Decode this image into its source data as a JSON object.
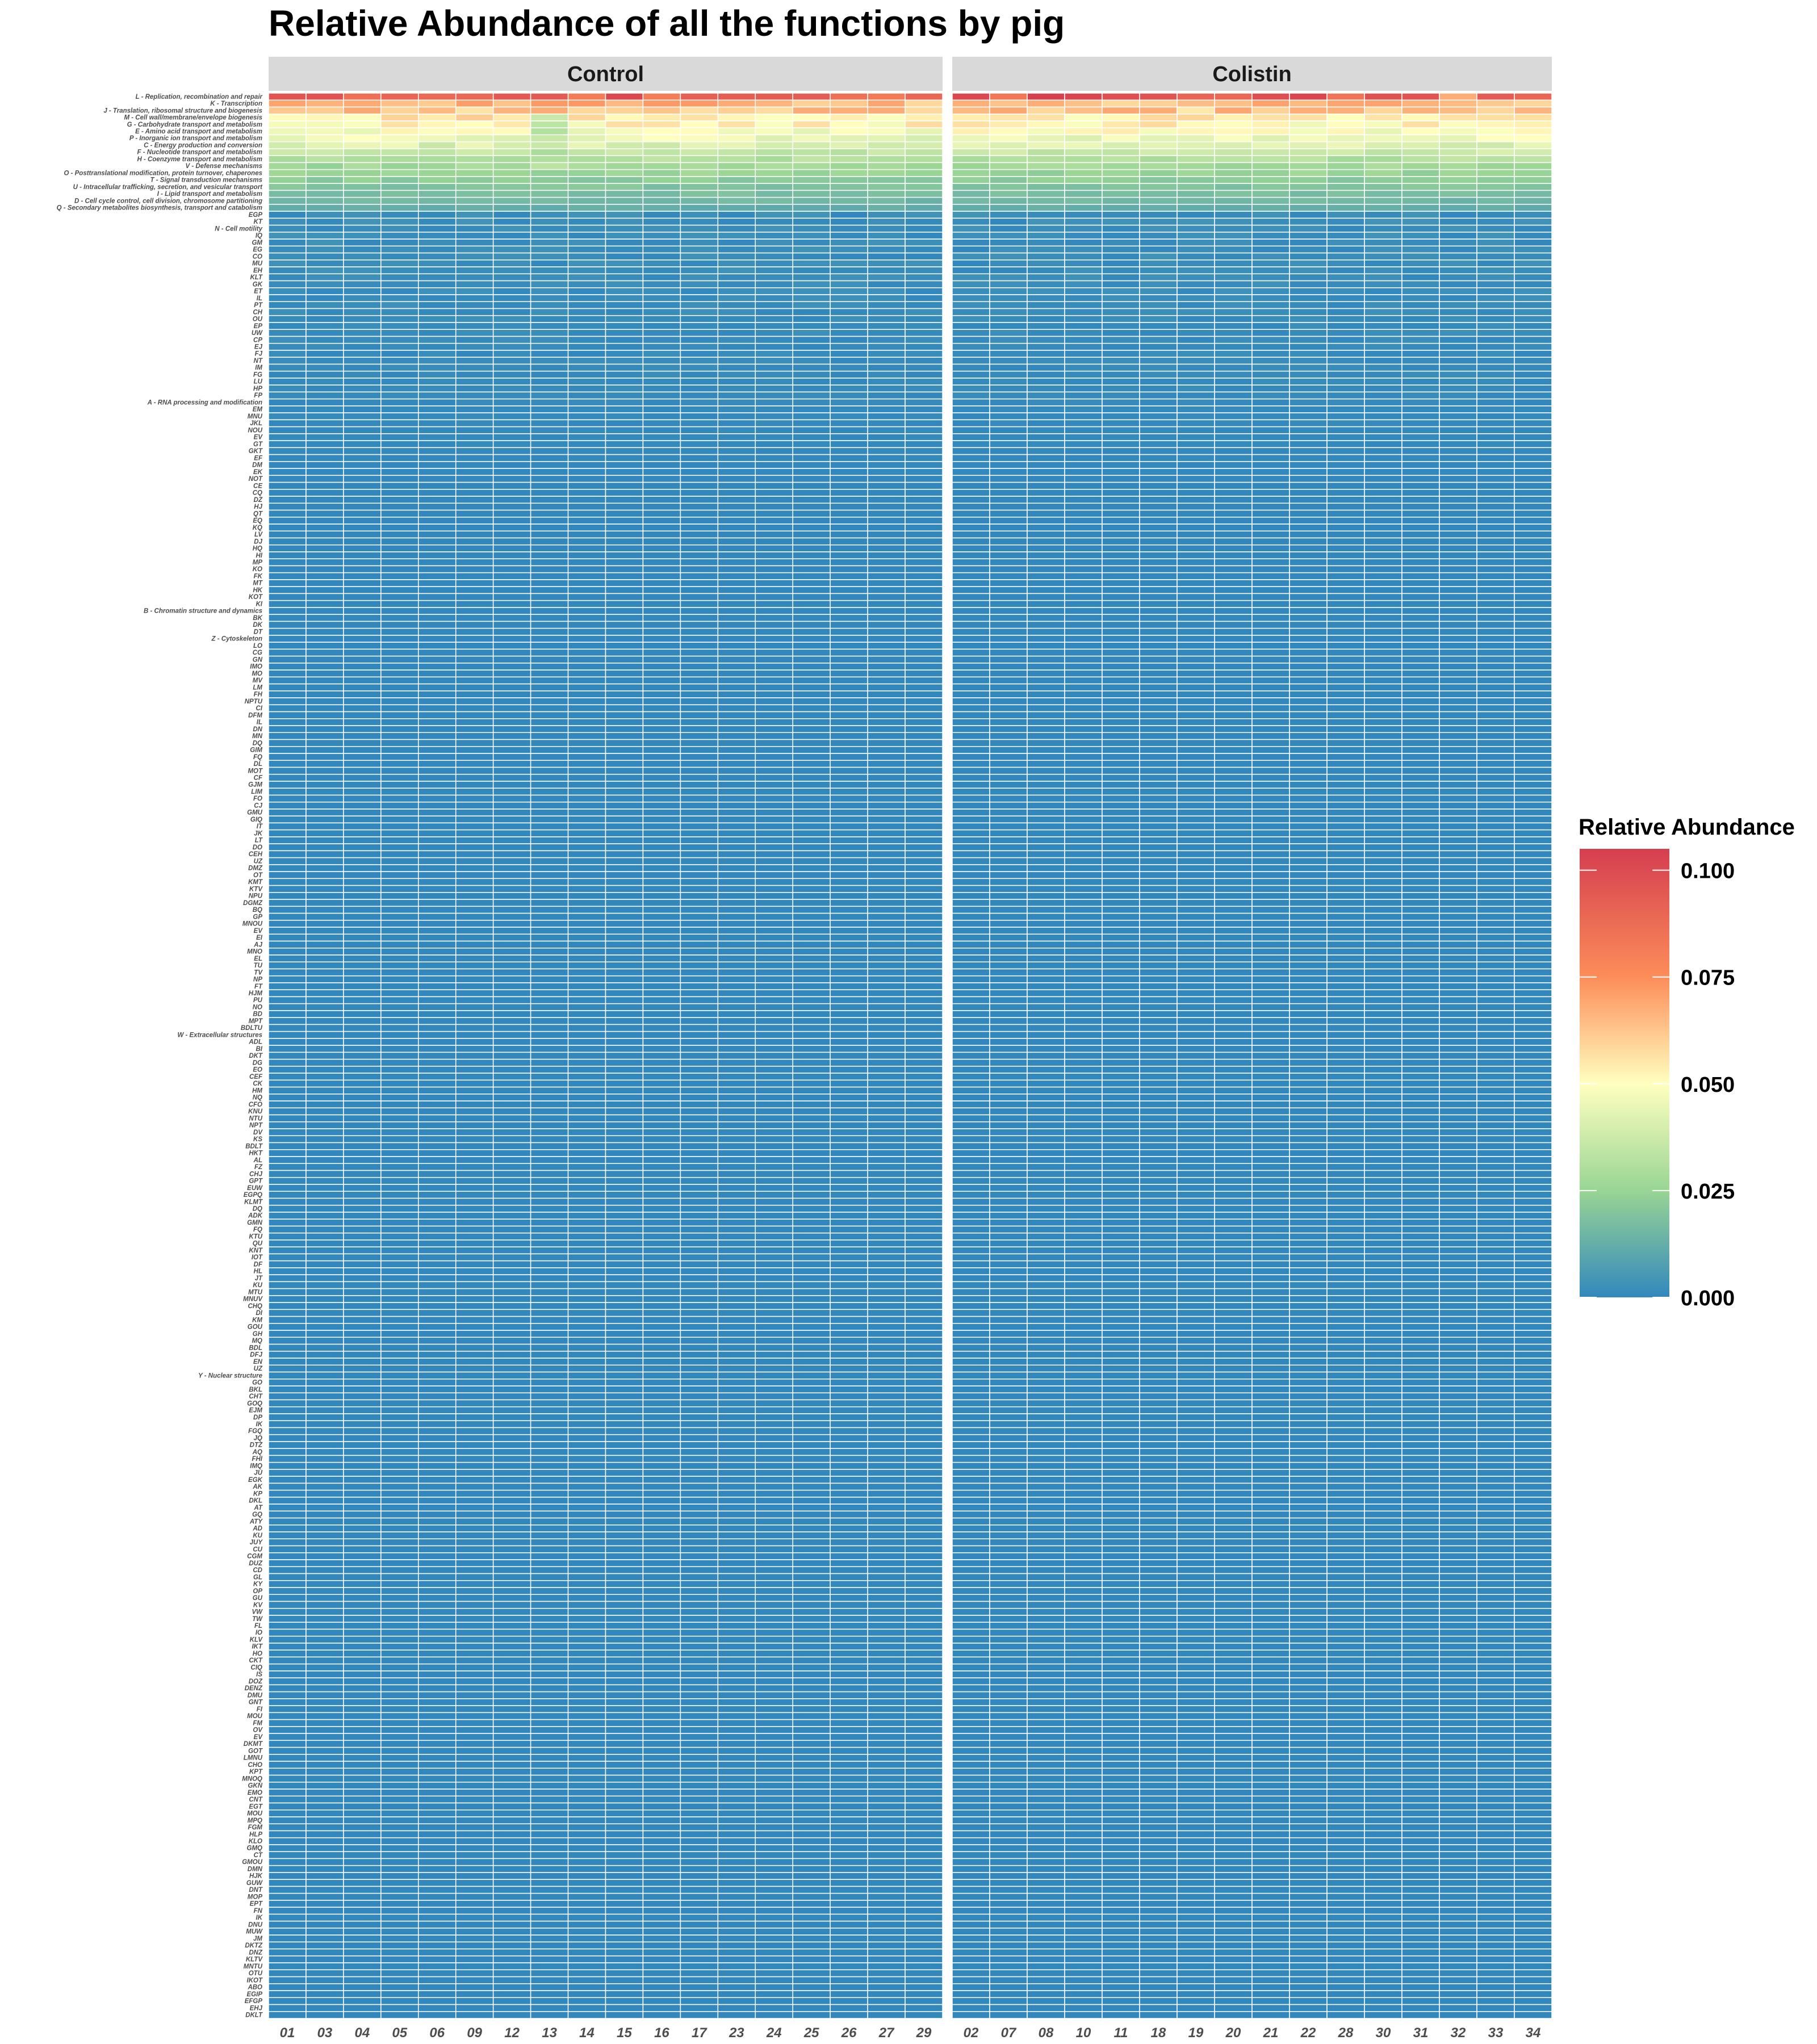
{
  "chart_data": {
    "type": "heatmap",
    "title": "Relative Abundance of all the functions by pig",
    "xlabel": "",
    "ylabel": "",
    "legend": {
      "title": "Relative Abundance",
      "position": "right",
      "breaks": [
        0.0,
        0.025,
        0.05,
        0.075,
        0.1
      ],
      "break_labels": [
        "0.000",
        "0.025",
        "0.050",
        "0.075",
        "0.100"
      ],
      "limits": [
        0.0,
        0.105
      ],
      "colors": [
        "#3288bd",
        "#99d594",
        "#ffffbf",
        "#fc8d59",
        "#d53e4f"
      ]
    },
    "grid": false,
    "panels": [
      {
        "name": "Control",
        "pigs": [
          "01",
          "03",
          "04",
          "05",
          "06",
          "09",
          "12",
          "13",
          "14",
          "15",
          "16",
          "17",
          "23",
          "24",
          "25",
          "26",
          "27",
          "29"
        ]
      },
      {
        "name": "Colistin",
        "pigs": [
          "02",
          "07",
          "08",
          "10",
          "11",
          "18",
          "19",
          "20",
          "21",
          "22",
          "28",
          "30",
          "31",
          "32",
          "33",
          "34"
        ]
      }
    ],
    "functions": [
      "L - Replication, recombination and repair",
      "K - Transcription",
      "J - Translation, ribosomal structure and biogenesis",
      "M - Cell wall/membrane/envelope biogenesis",
      "G - Carbohydrate transport and metabolism",
      "E - Amino acid transport and metabolism",
      "P - Inorganic ion transport and metabolism",
      "C - Energy production and conversion",
      "F - Nucleotide transport and metabolism",
      "H - Coenzyme transport and metabolism",
      "V - Defense mechanisms",
      "O - Posttranslational modification, protein turnover, chaperones",
      "T - Signal transduction mechanisms",
      "U - Intracellular trafficking, secretion, and vesicular transport",
      "I - Lipid transport and metabolism",
      "D - Cell cycle control, cell division, chromosome partitioning",
      "Q - Secondary metabolites biosynthesis, transport and catabolism",
      "EGP",
      "KT",
      "N - Cell motility",
      "IQ",
      "GM",
      "EG",
      "CO",
      "MU",
      "EH",
      "KLT",
      "GK",
      "ET",
      "IL",
      "PT",
      "CH",
      "OU",
      "EP",
      "UW",
      "CP",
      "EJ",
      "FJ",
      "NT",
      "IM",
      "FG",
      "LU",
      "HP",
      "FP",
      "A - RNA processing and modification",
      "EM",
      "MNU",
      "JKL",
      "NOU",
      "EV",
      "GT",
      "GKT",
      "EF",
      "DM",
      "EK",
      "NOT",
      "CE",
      "CQ",
      "DZ",
      "HJ",
      "QT",
      "EQ",
      "KQ",
      "LV",
      "DJ",
      "HQ",
      "HI",
      "MP",
      "KO",
      "FK",
      "MT",
      "HK",
      "KOT",
      "KI",
      "B - Chromatin structure and dynamics",
      "BK",
      "DK",
      "DT",
      "Z - Cytoskeleton",
      "LO",
      "CG",
      "GN",
      "IMO",
      "MO",
      "MV",
      "LM",
      "FH",
      "NPTU",
      "CI",
      "DFM",
      "IL2",
      "DN",
      "MN",
      "DQ",
      "GIM",
      "FQ",
      "DL",
      "MOT",
      "CF",
      "GJM",
      "LIM",
      "FO",
      "CJ",
      "GMU",
      "GIQ",
      "IT",
      "JK",
      "LT",
      "DO",
      "CEH",
      "UZ",
      "DMZ",
      "OT",
      "KMT",
      "KTV",
      "NPU",
      "DGMZ",
      "BQ",
      "GP",
      "MNOU",
      "EV2",
      "EI",
      "AJ",
      "MNO",
      "EL",
      "TU",
      "TV",
      "NP",
      "FT",
      "HJM",
      "PU",
      "NO2",
      "BD",
      "MPT",
      "BDLTU",
      "W - Extracellular structures",
      "ADL",
      "BI",
      "DKT",
      "DG",
      "EO",
      "CEF",
      "CK",
      "HM",
      "NQ",
      "CFO",
      "KNU",
      "NTU",
      "NPT2",
      "DV",
      "KS",
      "BDLT",
      "HKT",
      "AL",
      "FZ",
      "CHJ",
      "GPT",
      "EUW",
      "EGPQ",
      "KLMT",
      "DQ2",
      "ADK",
      "GMN",
      "FQ2",
      "KTU",
      "QU",
      "KNT",
      "IOT",
      "DF",
      "HL",
      "JT",
      "KU",
      "MTU",
      "MNUV",
      "CHQ",
      "DI",
      "KM",
      "GOU",
      "GH",
      "MQ",
      "BDL",
      "DFJ",
      "EN",
      "UZ2",
      "Y - Nuclear structure",
      "GO",
      "BKL",
      "CHT",
      "GOQ",
      "EJM",
      "DP",
      "IK",
      "FGQ",
      "JQ",
      "DTZ",
      "AQ",
      "FHI",
      "IMQ",
      "JU",
      "EGK",
      "AK",
      "KP",
      "DKL",
      "AT",
      "GQ",
      "ATY",
      "AD",
      "KU2",
      "JUY",
      "CU",
      "CGM",
      "DUZ",
      "CD",
      "GL",
      "KY",
      "OP",
      "GU",
      "KV",
      "VW",
      "TW",
      "FL",
      "IO",
      "KLV",
      "IKT",
      "HO",
      "CKT",
      "CIQ",
      "IS",
      "DOZ",
      "DENZ",
      "DMU",
      "GNT",
      "FI",
      "MOU",
      "FM",
      "OV",
      "EV3",
      "DKMT",
      "GOT",
      "LMNU",
      "CHO",
      "KPT",
      "MNOQ",
      "GKN",
      "EMO",
      "CNT",
      "EGT",
      "MOU2",
      "MPQ",
      "FGM",
      "HLP",
      "KLO",
      "GMQ",
      "CT",
      "GMOU",
      "DMN",
      "HJK",
      "GUW",
      "DNT",
      "MOP",
      "EPT",
      "FN",
      "IK2",
      "DNU",
      "MUW",
      "JM",
      "DKTZ",
      "DNZ",
      "KLTV",
      "MNTU",
      "OTU",
      "IKOT",
      "ABO",
      "EGIP",
      "EFGP",
      "EHJ",
      "DKLT"
    ],
    "major_values": {
      "L": 0.092,
      "K": 0.065,
      "J": 0.062,
      "M": 0.055,
      "G": 0.052,
      "E": 0.049,
      "P": 0.045,
      "C": 0.041,
      "F": 0.036,
      "H": 0.031,
      "V": 0.027,
      "O": 0.025,
      "T": 0.022,
      "U": 0.019,
      "I": 0.017,
      "D": 0.015,
      "Q": 0.012
    },
    "colistin_L": {
      "02": 0.101,
      "08": 0.104,
      "11": 0.098,
      "18": 0.097,
      "21": 0.099,
      "22": 0.102,
      "32": 0.068
    },
    "control_13_dip": 0.028
  }
}
